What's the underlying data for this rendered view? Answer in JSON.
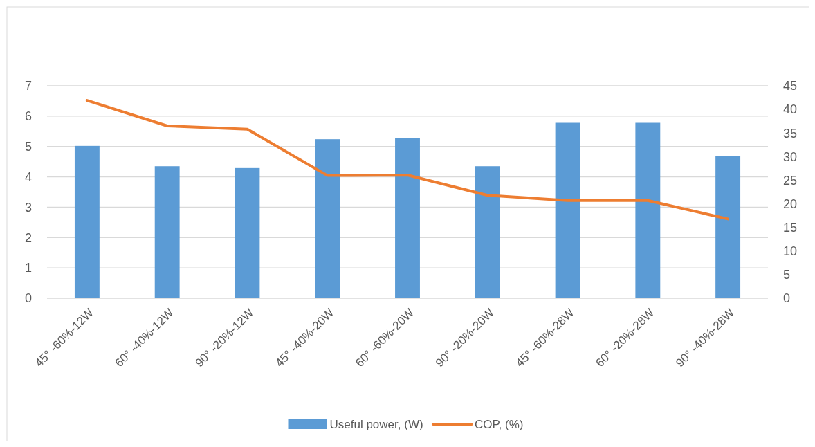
{
  "chart_data": {
    "type": "bar",
    "categories": [
      "45° -60%-12W",
      "60° -40%-12W",
      "90° -20%-12W",
      "45° -40%-20W",
      "60° -60%-20W",
      "90° -20%-20W",
      "45° -60%-28W",
      "60° -20%-28W",
      "90° -40%-28W"
    ],
    "series": [
      {
        "name": "Useful power, (W)",
        "color": "#5b9bd5",
        "values": [
          5.02,
          4.35,
          4.29,
          5.24,
          5.27,
          4.35,
          5.78,
          5.78,
          4.68
        ]
      },
      {
        "name": "COP, (%)",
        "type": "line",
        "axis": "y2",
        "color": "#ed7d31",
        "values": [
          41.9,
          36.5,
          35.8,
          26.0,
          26.1,
          21.8,
          20.7,
          20.7,
          16.8
        ]
      }
    ],
    "ylim": [
      0,
      7
    ],
    "yticks": [
      0,
      1,
      2,
      3,
      4,
      5,
      6,
      7
    ],
    "y2lim": [
      0,
      45
    ],
    "y2ticks": [
      0,
      5,
      10,
      15,
      20,
      25,
      30,
      35,
      40,
      45
    ],
    "grid": "y",
    "legend": "bottom",
    "marker": "none",
    "line_style": "solid"
  }
}
